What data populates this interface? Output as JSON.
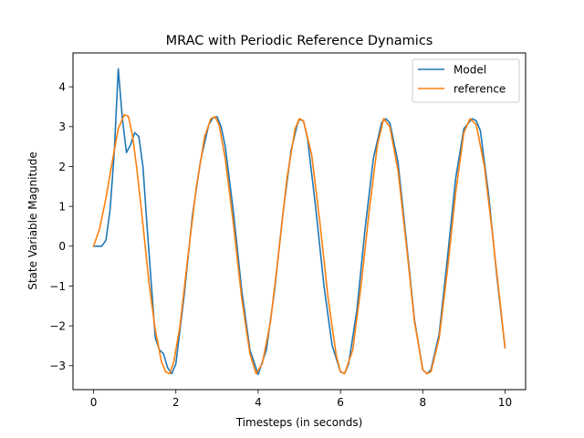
{
  "chart_data": {
    "type": "line",
    "title": "MRAC with Periodic Reference Dynamics",
    "xlabel": "Timesteps (in seconds)",
    "ylabel": "State Variable Magnitude",
    "xlim": [
      -0.5,
      10.5
    ],
    "ylim": [
      -3.6,
      4.85
    ],
    "xticks": [
      0,
      2,
      4,
      6,
      8,
      10
    ],
    "xtick_labels": [
      "0",
      "2",
      "4",
      "6",
      "8",
      "10"
    ],
    "yticks": [
      -3,
      -2,
      -1,
      0,
      1,
      2,
      3,
      4
    ],
    "ytick_labels": [
      "−3",
      "−2",
      "−1",
      "0",
      "1",
      "2",
      "3",
      "4"
    ],
    "grid": false,
    "legend": {
      "location": "top-right",
      "entries": [
        "Model",
        "reference"
      ]
    },
    "series": [
      {
        "name": "Model",
        "color": "#1f77b4",
        "x": [
          0,
          0.2,
          0.3,
          0.4,
          0.5,
          0.6,
          0.7,
          0.8,
          0.9,
          1.0,
          1.1,
          1.2,
          1.3,
          1.4,
          1.5,
          1.6,
          1.7,
          1.8,
          1.9,
          2.0,
          2.2,
          2.4,
          2.6,
          2.8,
          2.9,
          3.0,
          3.1,
          3.2,
          3.4,
          3.6,
          3.8,
          4.0,
          4.2,
          4.4,
          4.6,
          4.8,
          4.95,
          5.0,
          5.1,
          5.2,
          5.4,
          5.6,
          5.8,
          6.0,
          6.1,
          6.2,
          6.4,
          6.6,
          6.8,
          7.0,
          7.1,
          7.2,
          7.4,
          7.6,
          7.8,
          8.0,
          8.1,
          8.2,
          8.4,
          8.6,
          8.8,
          9.0,
          9.2,
          9.3,
          9.4,
          9.6,
          9.8,
          10.0
        ],
        "y": [
          0.0,
          0.0,
          0.15,
          0.9,
          2.3,
          4.45,
          3.2,
          2.35,
          2.55,
          2.85,
          2.75,
          2.0,
          0.5,
          -0.9,
          -2.3,
          -2.6,
          -2.7,
          -3.05,
          -3.2,
          -2.95,
          -1.25,
          0.75,
          2.15,
          3.05,
          3.22,
          3.25,
          3.0,
          2.5,
          0.85,
          -1.1,
          -2.6,
          -3.22,
          -2.6,
          -1.1,
          0.8,
          2.4,
          3.05,
          3.18,
          3.15,
          2.7,
          0.95,
          -1.0,
          -2.5,
          -3.15,
          -3.2,
          -2.95,
          -1.6,
          0.45,
          2.2,
          3.1,
          3.2,
          3.1,
          2.1,
          0.15,
          -1.85,
          -3.1,
          -3.2,
          -3.1,
          -2.2,
          -0.3,
          1.7,
          2.95,
          3.2,
          3.15,
          2.9,
          1.3,
          -0.75,
          -2.55
        ]
      },
      {
        "name": "reference",
        "color": "#ff7f0e",
        "x": [
          0,
          0.15,
          0.3,
          0.45,
          0.6,
          0.75,
          0.85,
          0.95,
          1.05,
          1.2,
          1.35,
          1.5,
          1.65,
          1.75,
          1.85,
          1.95,
          2.1,
          2.3,
          2.5,
          2.7,
          2.85,
          2.95,
          3.05,
          3.2,
          3.4,
          3.6,
          3.8,
          3.95,
          4.1,
          4.3,
          4.5,
          4.7,
          4.9,
          5.0,
          5.1,
          5.3,
          5.5,
          5.7,
          5.9,
          6.0,
          6.1,
          6.3,
          6.5,
          6.7,
          6.9,
          7.05,
          7.2,
          7.4,
          7.6,
          7.8,
          8.0,
          8.1,
          8.2,
          8.4,
          8.6,
          8.8,
          9.0,
          9.15,
          9.3,
          9.5,
          9.7,
          9.9,
          10.0
        ],
        "y": [
          0.0,
          0.45,
          1.2,
          2.1,
          2.95,
          3.3,
          3.25,
          2.75,
          1.95,
          0.55,
          -0.95,
          -2.1,
          -2.9,
          -3.15,
          -3.2,
          -2.9,
          -2.0,
          -0.2,
          1.5,
          2.75,
          3.2,
          3.25,
          3.05,
          2.2,
          0.55,
          -1.3,
          -2.7,
          -3.2,
          -2.95,
          -1.9,
          -0.15,
          1.7,
          2.95,
          3.2,
          3.15,
          2.3,
          0.6,
          -1.3,
          -2.75,
          -3.15,
          -3.2,
          -2.6,
          -1.0,
          0.9,
          2.55,
          3.2,
          3.0,
          1.9,
          0.05,
          -1.9,
          -3.1,
          -3.2,
          -3.15,
          -2.3,
          -0.6,
          1.35,
          2.85,
          3.2,
          3.05,
          2.0,
          0.25,
          -1.6,
          -2.55
        ]
      }
    ]
  }
}
